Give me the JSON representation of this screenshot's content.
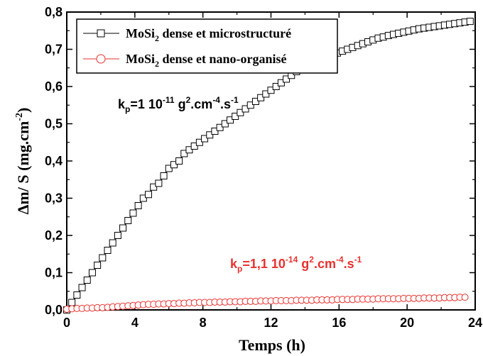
{
  "chart_data": {
    "type": "scatter",
    "xlabel": "Temps (h)",
    "ylabel": "Δm/ S (mg.cm-2)",
    "xlim": [
      0,
      24
    ],
    "ylim": [
      0,
      0.8
    ],
    "x_ticks": [
      "0",
      "4",
      "8",
      "12",
      "16",
      "20",
      "24"
    ],
    "y_ticks": [
      "0,0",
      "0,1",
      "0,2",
      "0,3",
      "0,4",
      "0,5",
      "0,6",
      "0,7",
      "0,8"
    ],
    "grid": false,
    "legend_position": "top-left",
    "series": [
      {
        "name": "MoSi2 dense et microstructuré",
        "marker": "square",
        "color": "#000000",
        "x": [
          0.0,
          0.3,
          0.6,
          0.9,
          1.2,
          1.5,
          1.8,
          2.1,
          2.4,
          2.7,
          3.0,
          3.3,
          3.6,
          3.9,
          4.2,
          4.5,
          4.8,
          5.1,
          5.4,
          5.7,
          6.0,
          6.3,
          6.6,
          6.9,
          7.2,
          7.5,
          7.8,
          8.1,
          8.4,
          8.7,
          9.0,
          9.3,
          9.6,
          9.9,
          10.2,
          10.5,
          10.8,
          11.1,
          11.4,
          11.7,
          12.0,
          12.3,
          12.6,
          12.9,
          13.2,
          13.5,
          13.8,
          14.1,
          14.4,
          14.7,
          15.0,
          15.3,
          15.6,
          15.9,
          16.2,
          16.5,
          16.8,
          17.1,
          17.4,
          17.7,
          18.0,
          18.3,
          18.6,
          18.9,
          19.2,
          19.5,
          19.8,
          20.1,
          20.4,
          20.7,
          21.0,
          21.3,
          21.6,
          21.9,
          22.2,
          22.5,
          22.8,
          23.1,
          23.4,
          23.7
        ],
        "y": [
          0.0,
          0.02,
          0.04,
          0.06,
          0.08,
          0.1,
          0.12,
          0.14,
          0.16,
          0.18,
          0.2,
          0.22,
          0.24,
          0.26,
          0.28,
          0.3,
          0.31,
          0.33,
          0.34,
          0.36,
          0.38,
          0.39,
          0.4,
          0.42,
          0.43,
          0.44,
          0.45,
          0.46,
          0.47,
          0.48,
          0.49,
          0.5,
          0.51,
          0.52,
          0.53,
          0.54,
          0.55,
          0.56,
          0.57,
          0.58,
          0.59,
          0.6,
          0.61,
          0.62,
          0.63,
          0.64,
          0.645,
          0.65,
          0.66,
          0.665,
          0.67,
          0.68,
          0.685,
          0.69,
          0.695,
          0.7,
          0.705,
          0.71,
          0.715,
          0.72,
          0.725,
          0.73,
          0.733,
          0.737,
          0.74,
          0.743,
          0.746,
          0.749,
          0.752,
          0.755,
          0.757,
          0.759,
          0.761,
          0.763,
          0.765,
          0.767,
          0.769,
          0.771,
          0.773,
          0.775
        ]
      },
      {
        "name": "MoSi2 dense et nano-organisé",
        "marker": "circle",
        "color": "#e8312f",
        "x": [
          0.0,
          0.3,
          0.6,
          0.9,
          1.2,
          1.5,
          1.8,
          2.1,
          2.4,
          2.7,
          3.0,
          3.3,
          3.6,
          3.9,
          4.2,
          4.5,
          4.8,
          5.1,
          5.4,
          5.7,
          6.0,
          6.3,
          6.6,
          6.9,
          7.2,
          7.5,
          7.8,
          8.1,
          8.4,
          8.7,
          9.0,
          9.3,
          9.6,
          9.9,
          10.2,
          10.5,
          10.8,
          11.1,
          11.4,
          11.7,
          12.0,
          12.3,
          12.6,
          12.9,
          13.2,
          13.5,
          13.8,
          14.1,
          14.4,
          14.7,
          15.0,
          15.3,
          15.6,
          15.9,
          16.2,
          16.5,
          16.8,
          17.1,
          17.4,
          17.7,
          18.0,
          18.3,
          18.6,
          18.9,
          19.2,
          19.5,
          19.8,
          20.1,
          20.4,
          20.7,
          21.0,
          21.3,
          21.6,
          21.9,
          22.2,
          22.5,
          22.8,
          23.1,
          23.4
        ],
        "y": [
          0.002,
          0.003,
          0.004,
          0.004,
          0.005,
          0.005,
          0.006,
          0.006,
          0.007,
          0.008,
          0.009,
          0.01,
          0.011,
          0.012,
          0.013,
          0.014,
          0.015,
          0.015,
          0.016,
          0.016,
          0.017,
          0.017,
          0.018,
          0.018,
          0.019,
          0.019,
          0.02,
          0.02,
          0.02,
          0.021,
          0.021,
          0.021,
          0.022,
          0.022,
          0.022,
          0.023,
          0.023,
          0.023,
          0.024,
          0.024,
          0.024,
          0.025,
          0.025,
          0.025,
          0.025,
          0.026,
          0.026,
          0.026,
          0.026,
          0.027,
          0.027,
          0.027,
          0.027,
          0.028,
          0.028,
          0.028,
          0.028,
          0.029,
          0.029,
          0.029,
          0.029,
          0.03,
          0.03,
          0.03,
          0.03,
          0.03,
          0.031,
          0.031,
          0.031,
          0.031,
          0.032,
          0.032,
          0.032,
          0.032,
          0.033,
          0.033,
          0.033,
          0.034,
          0.034
        ]
      }
    ],
    "legend": [
      {
        "base": "MoSi",
        "sub": "2",
        "rest": " dense et microstructuré"
      },
      {
        "base": "MoSi",
        "sub": "2",
        "rest": " dense et nano-organisé"
      }
    ],
    "annotations": [
      {
        "color": "#000000",
        "k": "k",
        "p": "p",
        "eq": "=1 10",
        "exp1": "-11",
        "g": " g",
        "exp2": "2",
        "cm": ".cm",
        "exp3": "-4",
        "s": ".s",
        "exp4": "-1"
      },
      {
        "color": "#e8312f",
        "k": "k",
        "p": "p",
        "eq": "=1,1 10",
        "exp1": "-14",
        "g": " g",
        "exp2": "2",
        "cm": ".cm",
        "exp3": "-4",
        "s": ".s",
        "exp4": "-1"
      }
    ],
    "axis_titles": {
      "x": "Temps (h)",
      "y_main": "Δm/ S (mg.cm",
      "y_sup": "-2",
      "y_end": ")"
    }
  }
}
